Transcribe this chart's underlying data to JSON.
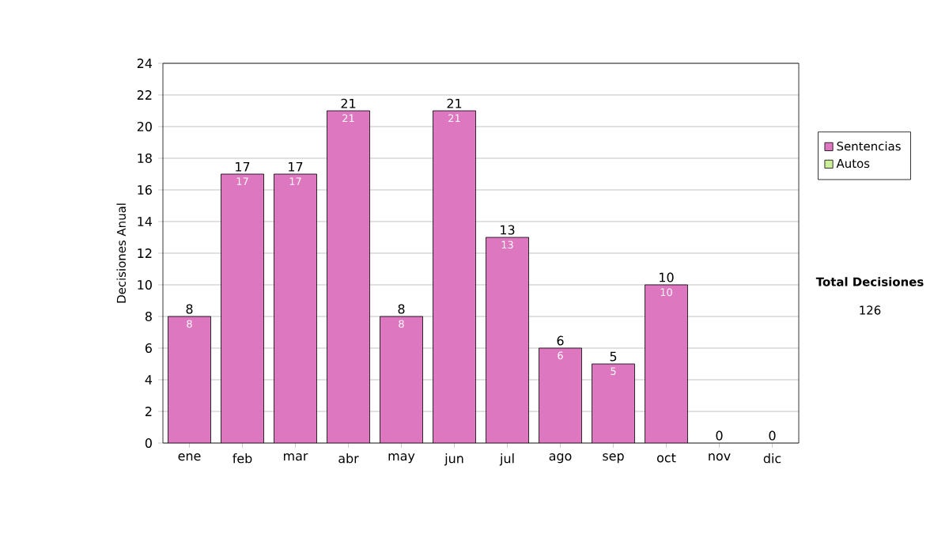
{
  "chart_data": {
    "type": "bar",
    "stacked": true,
    "ylabel": "Decisiones Anual",
    "categories": [
      "ene",
      "feb",
      "mar",
      "abr",
      "may",
      "jun",
      "jul",
      "ago",
      "sep",
      "oct",
      "nov",
      "dic"
    ],
    "series": [
      {
        "name": "Sentencias",
        "color": "#dd77c0",
        "values": [
          8,
          17,
          17,
          21,
          8,
          21,
          13,
          6,
          5,
          10,
          0,
          0
        ],
        "value_labels": [
          "8",
          "17",
          "17",
          "21",
          "8",
          "21",
          "13",
          "6",
          "5",
          "10",
          null,
          null
        ]
      },
      {
        "name": "Autos",
        "color": "#ccee99",
        "values": [
          0,
          0,
          0,
          0,
          0,
          0,
          0,
          0,
          0,
          0,
          0,
          0
        ]
      }
    ],
    "totals": [
      "8",
      "17",
      "17",
      "21",
      "8",
      "21",
      "13",
      "6",
      "5",
      "10",
      "0",
      "0"
    ],
    "ylim": [
      0,
      24
    ],
    "yticks": [
      0,
      2,
      4,
      6,
      8,
      10,
      12,
      14,
      16,
      18,
      20,
      22,
      24
    ],
    "grid": "y",
    "legend": "right",
    "annotations": [
      "Total Decisiones",
      "126"
    ]
  }
}
